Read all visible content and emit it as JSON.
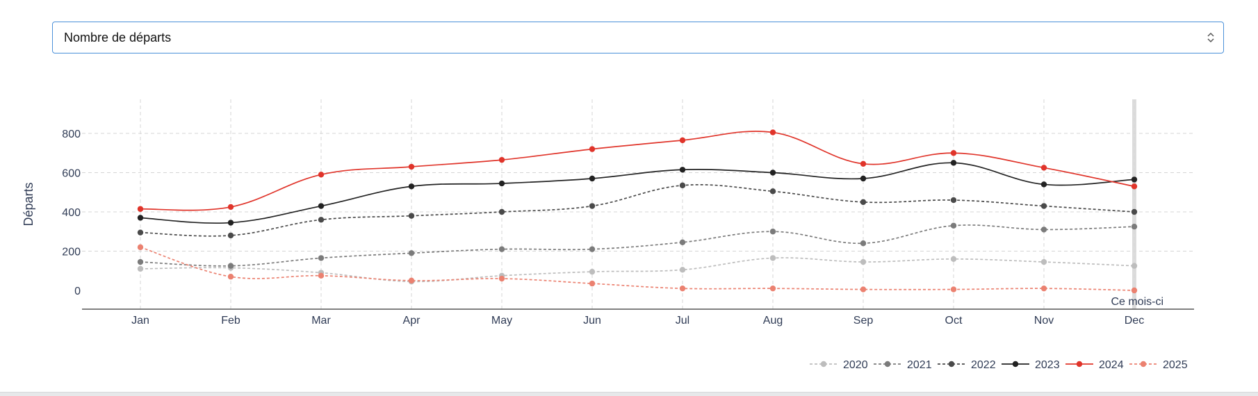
{
  "selector": {
    "value": "Nombre de départs"
  },
  "chart_data": {
    "type": "line",
    "categories": [
      "Jan",
      "Feb",
      "Mar",
      "Apr",
      "May",
      "Jun",
      "Jul",
      "Aug",
      "Sep",
      "Oct",
      "Nov",
      "Dec"
    ],
    "ylabel": "Départs",
    "ylim": [
      -90,
      1000
    ],
    "yticks": [
      0,
      200,
      400,
      600,
      800
    ],
    "grid": true,
    "legend_position": "bottom-right",
    "current_month_label": "Ce mois-ci",
    "current_month": "Dec",
    "series": [
      {
        "name": "2020",
        "color": "#bdbdbd",
        "dash": "dashed",
        "values": [
          110,
          115,
          90,
          45,
          75,
          95,
          105,
          165,
          145,
          160,
          145,
          125
        ]
      },
      {
        "name": "2021",
        "color": "#7b7b7b",
        "dash": "dashed",
        "values": [
          145,
          125,
          165,
          190,
          210,
          210,
          245,
          300,
          240,
          330,
          310,
          325
        ]
      },
      {
        "name": "2022",
        "color": "#4a4a4a",
        "dash": "dashed",
        "values": [
          295,
          280,
          360,
          380,
          400,
          430,
          535,
          505,
          450,
          460,
          430,
          400
        ]
      },
      {
        "name": "2023",
        "color": "#222222",
        "dash": "solid",
        "values": [
          370,
          345,
          430,
          530,
          545,
          570,
          615,
          600,
          570,
          650,
          540,
          565
        ]
      },
      {
        "name": "2024",
        "color": "#e0342a",
        "dash": "solid",
        "values": [
          415,
          425,
          590,
          630,
          665,
          720,
          765,
          805,
          645,
          700,
          625,
          530
        ]
      },
      {
        "name": "2025",
        "color": "#eb8170",
        "dash": "dashed",
        "values": [
          220,
          70,
          75,
          50,
          60,
          35,
          10,
          10,
          5,
          5,
          10,
          0
        ]
      }
    ]
  }
}
